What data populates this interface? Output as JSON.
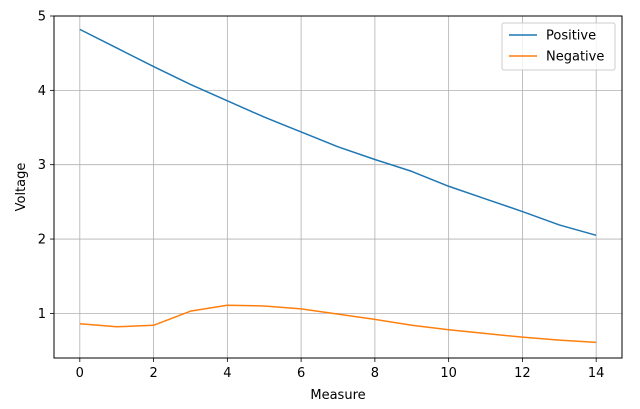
{
  "chart_data": {
    "type": "line",
    "xlabel": "Measure",
    "ylabel": "Voltage",
    "xlim": [
      -0.7,
      14.7
    ],
    "ylim": [
      0.4,
      5.0
    ],
    "xticks": [
      0,
      2,
      4,
      6,
      8,
      10,
      12,
      14
    ],
    "yticks": [
      1,
      2,
      3,
      4,
      5
    ],
    "grid": true,
    "legend_position": "top-right",
    "x": [
      0,
      1,
      2,
      3,
      4,
      5,
      6,
      7,
      8,
      9,
      10,
      11,
      12,
      13,
      14
    ],
    "series": [
      {
        "name": "Positive",
        "color": "#1f77b4",
        "values": [
          4.82,
          4.57,
          4.32,
          4.08,
          3.86,
          3.64,
          3.44,
          3.24,
          3.07,
          2.91,
          2.71,
          2.54,
          2.37,
          2.19,
          2.05
        ]
      },
      {
        "name": "Negative",
        "color": "#ff7f0e",
        "values": [
          0.86,
          0.82,
          0.84,
          1.03,
          1.11,
          1.1,
          1.06,
          0.99,
          0.92,
          0.84,
          0.78,
          0.73,
          0.68,
          0.64,
          0.61
        ]
      }
    ]
  }
}
